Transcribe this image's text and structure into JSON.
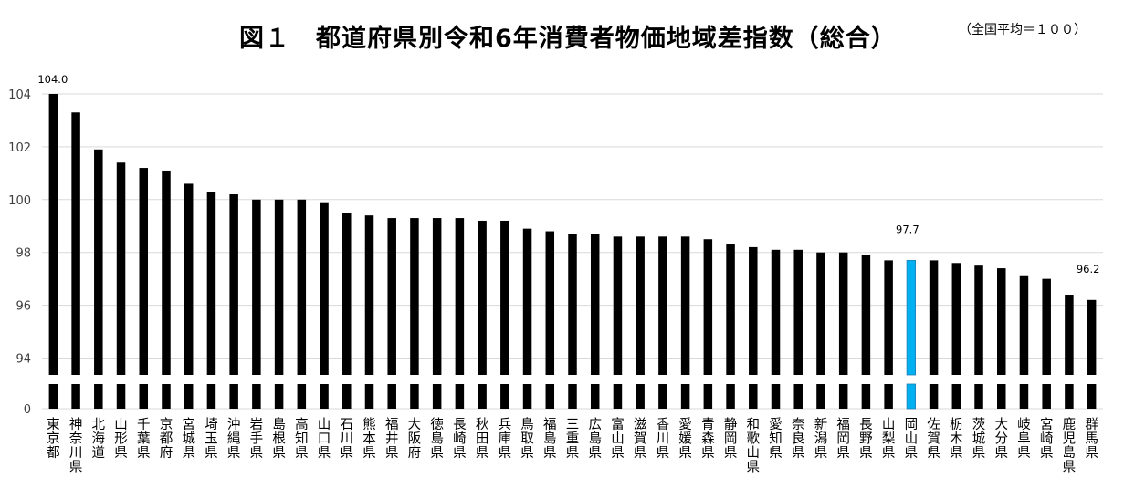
{
  "title": "図１　都道府県別令和6年消費者物価地域差指数（総合）",
  "note": "（全国平均＝１００）",
  "colors": {
    "bar": "#000000",
    "highlight": "#00B0F0",
    "grid": "#D9D9D9",
    "axis_text": "#404040"
  },
  "chart_data": {
    "type": "bar",
    "title": "図１　都道府県別令和6年消費者物価地域差指数（総合）",
    "xlabel": "",
    "ylabel": "",
    "ylim": [
      93,
      104
    ],
    "axis_break": true,
    "baseline_tick": "0",
    "yticks": [
      94,
      96,
      98,
      100,
      102,
      104
    ],
    "grid": true,
    "categories": [
      "東京都",
      "神奈川県",
      "北海道",
      "山形県",
      "千葉県",
      "京都府",
      "宮城県",
      "埼玉県",
      "沖縄県",
      "岩手県",
      "島根県",
      "高知県",
      "山口県",
      "石川県",
      "熊本県",
      "福井県",
      "大阪府",
      "徳島県",
      "長崎県",
      "秋田県",
      "兵庫県",
      "鳥取県",
      "福島県",
      "三重県",
      "広島県",
      "富山県",
      "滋賀県",
      "香川県",
      "愛媛県",
      "青森県",
      "静岡県",
      "和歌山県",
      "愛知県",
      "奈良県",
      "新潟県",
      "福岡県",
      "長野県",
      "山梨県",
      "岡山県",
      "佐賀県",
      "栃木県",
      "茨城県",
      "大分県",
      "岐阜県",
      "宮崎県",
      "鹿児島県",
      "群馬県"
    ],
    "values": [
      104.0,
      103.3,
      101.9,
      101.4,
      101.2,
      101.1,
      100.6,
      100.3,
      100.2,
      100.0,
      100.0,
      100.0,
      99.9,
      99.5,
      99.4,
      99.3,
      99.3,
      99.3,
      99.3,
      99.2,
      99.2,
      98.9,
      98.8,
      98.7,
      98.7,
      98.6,
      98.6,
      98.6,
      98.6,
      98.5,
      98.3,
      98.2,
      98.1,
      98.1,
      98.0,
      98.0,
      97.9,
      97.7,
      97.7,
      97.7,
      97.6,
      97.5,
      97.4,
      97.1,
      97.0,
      96.4,
      96.2
    ],
    "highlight_category": "岡山県",
    "data_labels": [
      {
        "category": "東京都",
        "text": "104.0"
      },
      {
        "category": "岡山県",
        "text": "97.7"
      },
      {
        "category": "群馬県",
        "text": "96.2"
      }
    ]
  }
}
